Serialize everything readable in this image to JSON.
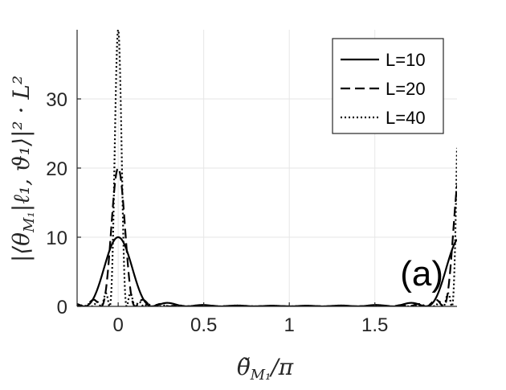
{
  "chart_data": {
    "type": "line",
    "xlabel": "θ̃_M1/π",
    "ylabel": "|⟨θ_M1|ℓ1,ϑ1⟩|²·L²",
    "xlim": [
      -0.24,
      1.98
    ],
    "ylim": [
      0,
      40
    ],
    "xticks": [
      0,
      0.5,
      1,
      1.5
    ],
    "xtick_labels": [
      "0",
      "0.5",
      "1",
      "1.5"
    ],
    "yticks": [
      0,
      10,
      20,
      30
    ],
    "ytick_labels": [
      "0",
      "10",
      "20",
      "30"
    ],
    "grid": true,
    "legend_position": "top-right",
    "annotation": "(a)",
    "series": [
      {
        "name": "L=10",
        "L": 10,
        "line_style": "solid",
        "peak_x": 0,
        "peak_y": 10
      },
      {
        "name": "L=20",
        "L": 20,
        "line_style": "dashed",
        "peak_x": 0,
        "peak_y": 20
      },
      {
        "name": "L=40",
        "L": 40,
        "line_style": "dotted",
        "peak_x": 0,
        "peak_y": 40
      }
    ],
    "line_color": "#000000"
  }
}
